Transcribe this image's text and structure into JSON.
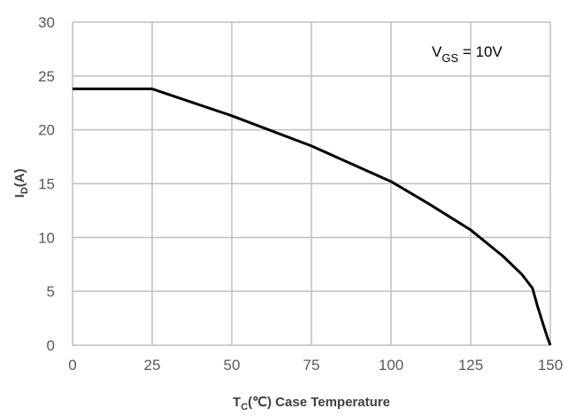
{
  "chart_data": {
    "type": "line",
    "title": "",
    "xlabel": {
      "main": "T",
      "sub": "C",
      "rest": "(℃) Case Temperature"
    },
    "ylabel": {
      "main": "I",
      "sub": "D",
      "rest": "(A)"
    },
    "xlim": [
      0,
      150
    ],
    "ylim": [
      0,
      30
    ],
    "xticks": [
      0,
      25,
      50,
      75,
      100,
      125,
      150
    ],
    "yticks": [
      0,
      5,
      10,
      15,
      20,
      25,
      30
    ],
    "grid": true,
    "annotation": {
      "main": "V",
      "sub": "GS",
      "rest": " = 10V",
      "position": "top-right"
    },
    "series": [
      {
        "color": "#000000",
        "x": [
          0,
          25,
          50,
          75,
          100,
          112,
          125,
          135,
          141,
          144.4,
          146,
          147.7,
          149,
          150
        ],
        "y": [
          23.8,
          23.8,
          21.3,
          18.5,
          15.2,
          13.1,
          10.7,
          8.3,
          6.6,
          5.3,
          3.6,
          2.0,
          0.8,
          0
        ]
      }
    ]
  }
}
